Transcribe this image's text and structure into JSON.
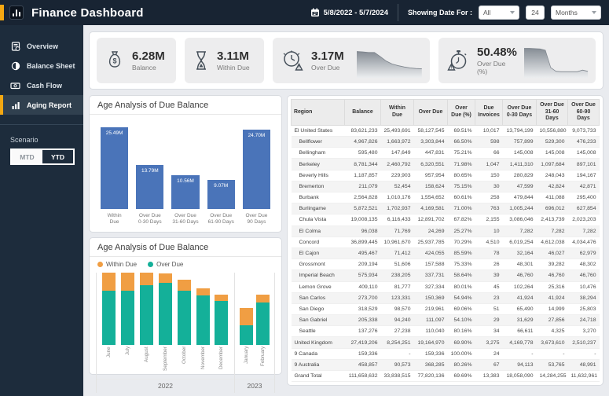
{
  "header": {
    "title": "Finance Dashboard",
    "date_range": "5/8/2022 - 5/7/2024",
    "showing_date_for_label": "Showing Date For :",
    "filter_scope": "All",
    "filter_count": "24",
    "filter_unit": "Months"
  },
  "sidebar": {
    "items": [
      {
        "label": "Overview"
      },
      {
        "label": "Balance Sheet"
      },
      {
        "label": "Cash Flow"
      },
      {
        "label": "Aging Report"
      }
    ],
    "selected_item": "Aging Report",
    "scenario_label": "Scenario",
    "mtd_label": "MTD",
    "ytd_label": "YTD",
    "selected_scenario": "YTD",
    "accent_color": "#f3a712"
  },
  "kpis": [
    {
      "value": "6.28M",
      "label": "Balance",
      "icon": "money-bag"
    },
    {
      "value": "3.11M",
      "label": "Within Due",
      "icon": "hourglass"
    },
    {
      "value": "3.17M",
      "label": "Over Due",
      "icon": "clock-alert",
      "sparkline": [
        8.2,
        8.1,
        7.9,
        7.9,
        6.6,
        5.2,
        4.3,
        3.8,
        3.4,
        3.1,
        2.9,
        2.8
      ]
    },
    {
      "value": "50.48%",
      "label": "Over Due (%)",
      "icon": "stopwatch-alert",
      "sparkline": [
        9.2,
        9.2,
        9.1,
        9.0,
        8.6,
        3.2,
        2.0,
        1.9,
        1.9,
        1.9,
        1.9,
        2.4,
        2.0
      ]
    }
  ],
  "chart_data": [
    {
      "type": "bar",
      "title": "Age Analysis of Due Balance",
      "categories": [
        [
          "Within",
          "Due"
        ],
        [
          "Over Due",
          "0-30 Days"
        ],
        [
          "Over Due",
          "31-60 Days"
        ],
        [
          "Over Due",
          "61-90 Days"
        ],
        [
          "Over Due",
          "90 Days"
        ]
      ],
      "values": [
        25.49,
        13.79,
        10.56,
        9.07,
        24.7
      ],
      "labels": [
        "25.49M",
        "13.79M",
        "10.56M",
        "9.07M",
        "24.70M"
      ],
      "bar_color": "#4a74b9",
      "ylim": [
        0,
        26
      ],
      "grid": false,
      "legend": "none"
    },
    {
      "type": "stacked-bar",
      "title": "Age Analysis of Due Balance",
      "legend_position": "top-left",
      "x": [
        "June",
        "July",
        "August",
        "September",
        "October",
        "November",
        "December",
        "January",
        "February"
      ],
      "year_groups": [
        {
          "label": "2022",
          "months": 7
        },
        {
          "label": "2023",
          "months": 2
        }
      ],
      "series": [
        {
          "name": "Within Due",
          "color": "#f09e43",
          "values": [
            1.6,
            1.6,
            1.1,
            0.8,
            1.0,
            0.6,
            0.6,
            1.5,
            0.7
          ]
        },
        {
          "name": "Over Due",
          "color": "#14b099",
          "values": [
            4.7,
            4.7,
            5.2,
            5.4,
            4.7,
            4.3,
            3.8,
            1.7,
            3.7
          ]
        }
      ],
      "ylim": [
        0,
        6.6
      ],
      "grid": false,
      "units": "estimated millions"
    }
  ],
  "table": {
    "columns": [
      "Region",
      "Balance",
      "Within Due",
      "Over Due",
      "Over Due (%)",
      "Due Invoices",
      "Over Due 0-30 Days",
      "Over Due 31-60 Days",
      "Over Due 60-90 Days"
    ],
    "rows": [
      {
        "region": "El United States",
        "indent": false,
        "cells": [
          "83,621,233",
          "25,493,691",
          "58,127,545",
          "69.51%",
          "10,017",
          "13,794,199",
          "10,556,880",
          "9,073,733"
        ]
      },
      {
        "region": "Bellflower",
        "indent": true,
        "cells": [
          "4,967,826",
          "1,663,972",
          "3,303,844",
          "66.50%",
          "598",
          "757,899",
          "529,300",
          "476,233"
        ]
      },
      {
        "region": "Bellingham",
        "indent": true,
        "cells": [
          "595,480",
          "147,649",
          "447,831",
          "75.21%",
          "66",
          "145,008",
          "145,008",
          "145,008"
        ]
      },
      {
        "region": "Berkeley",
        "indent": true,
        "cells": [
          "8,781,344",
          "2,460,792",
          "6,320,551",
          "71.98%",
          "1,047",
          "1,411,310",
          "1,097,684",
          "897,101"
        ]
      },
      {
        "region": "Beverly Hills",
        "indent": true,
        "cells": [
          "1,187,857",
          "229,903",
          "957,954",
          "80.65%",
          "150",
          "280,829",
          "248,043",
          "194,167"
        ]
      },
      {
        "region": "Bremerton",
        "indent": true,
        "cells": [
          "211,079",
          "52,454",
          "158,624",
          "75.15%",
          "30",
          "47,599",
          "42,824",
          "42,871"
        ]
      },
      {
        "region": "Burbank",
        "indent": true,
        "cells": [
          "2,564,828",
          "1,010,176",
          "1,554,652",
          "60.61%",
          "258",
          "479,844",
          "411,088",
          "295,400"
        ]
      },
      {
        "region": "Burlingame",
        "indent": true,
        "cells": [
          "5,872,521",
          "1,702,937",
          "4,169,581",
          "71.00%",
          "763",
          "1,005,244",
          "696,012",
          "627,854"
        ]
      },
      {
        "region": "Chula Vista",
        "indent": true,
        "cells": [
          "19,008,135",
          "6,116,433",
          "12,891,702",
          "67.82%",
          "2,155",
          "3,086,046",
          "2,413,739",
          "2,023,203"
        ]
      },
      {
        "region": "El Colma",
        "indent": true,
        "cells": [
          "96,038",
          "71,769",
          "24,269",
          "25.27%",
          "10",
          "7,282",
          "7,282",
          "7,282"
        ]
      },
      {
        "region": "Concord",
        "indent": true,
        "cells": [
          "36,899,445",
          "10,961,670",
          "25,937,785",
          "70.29%",
          "4,510",
          "6,019,254",
          "4,612,038",
          "4,034,476"
        ]
      },
      {
        "region": "El Cajon",
        "indent": true,
        "cells": [
          "495,467",
          "71,412",
          "424,055",
          "85.59%",
          "78",
          "32,164",
          "46,027",
          "62,979"
        ]
      },
      {
        "region": "Grossmont",
        "indent": true,
        "cells": [
          "209,194",
          "51,606",
          "157,588",
          "75.33%",
          "26",
          "48,301",
          "39,282",
          "48,302"
        ]
      },
      {
        "region": "Imperial Beach",
        "indent": true,
        "cells": [
          "575,934",
          "238,205",
          "337,731",
          "58.64%",
          "39",
          "46,760",
          "46,760",
          "46,760"
        ]
      },
      {
        "region": "Lemon Grove",
        "indent": true,
        "cells": [
          "409,110",
          "81,777",
          "327,334",
          "80.01%",
          "45",
          "102,264",
          "25,316",
          "10,476"
        ]
      },
      {
        "region": "San Carlos",
        "indent": true,
        "cells": [
          "273,700",
          "123,331",
          "150,369",
          "54.94%",
          "23",
          "41,924",
          "41,924",
          "38,294"
        ]
      },
      {
        "region": "San Diego",
        "indent": true,
        "cells": [
          "318,529",
          "98,570",
          "219,961",
          "69.06%",
          "51",
          "65,490",
          "14,999",
          "25,803"
        ]
      },
      {
        "region": "San Gabriel",
        "indent": true,
        "cells": [
          "205,338",
          "94,240",
          "111,097",
          "54.10%",
          "29",
          "31,629",
          "27,856",
          "24,718"
        ]
      },
      {
        "region": "Seattle",
        "indent": true,
        "cells": [
          "137,276",
          "27,238",
          "110,040",
          "80.16%",
          "34",
          "66,611",
          "4,325",
          "3,270"
        ]
      },
      {
        "region": "United Kingdom",
        "indent": false,
        "cells": [
          "27,419,206",
          "8,254,251",
          "19,164,970",
          "69.90%",
          "3,275",
          "4,169,778",
          "3,673,610",
          "2,510,237"
        ]
      },
      {
        "region": "9 Canada",
        "indent": false,
        "cells": [
          "159,336",
          "-",
          "159,336",
          "100.00%",
          "24",
          "-",
          "-",
          "-"
        ]
      },
      {
        "region": "9 Australia",
        "indent": false,
        "cells": [
          "458,857",
          "90,573",
          "368,285",
          "80.26%",
          "67",
          "94,113",
          "53,765",
          "48,991"
        ]
      },
      {
        "region": "Grand Total",
        "indent": false,
        "total": true,
        "cells": [
          "111,658,632",
          "33,838,515",
          "77,820,136",
          "69.69%",
          "13,383",
          "18,058,090",
          "14,284,255",
          "11,632,961"
        ]
      }
    ]
  },
  "colors": {
    "topbar": "#182433",
    "sidebar": "#1d2c3c",
    "accent": "#f3a712",
    "bar_blue": "#4a74b9",
    "teal": "#14b099",
    "orange": "#f09e43"
  }
}
